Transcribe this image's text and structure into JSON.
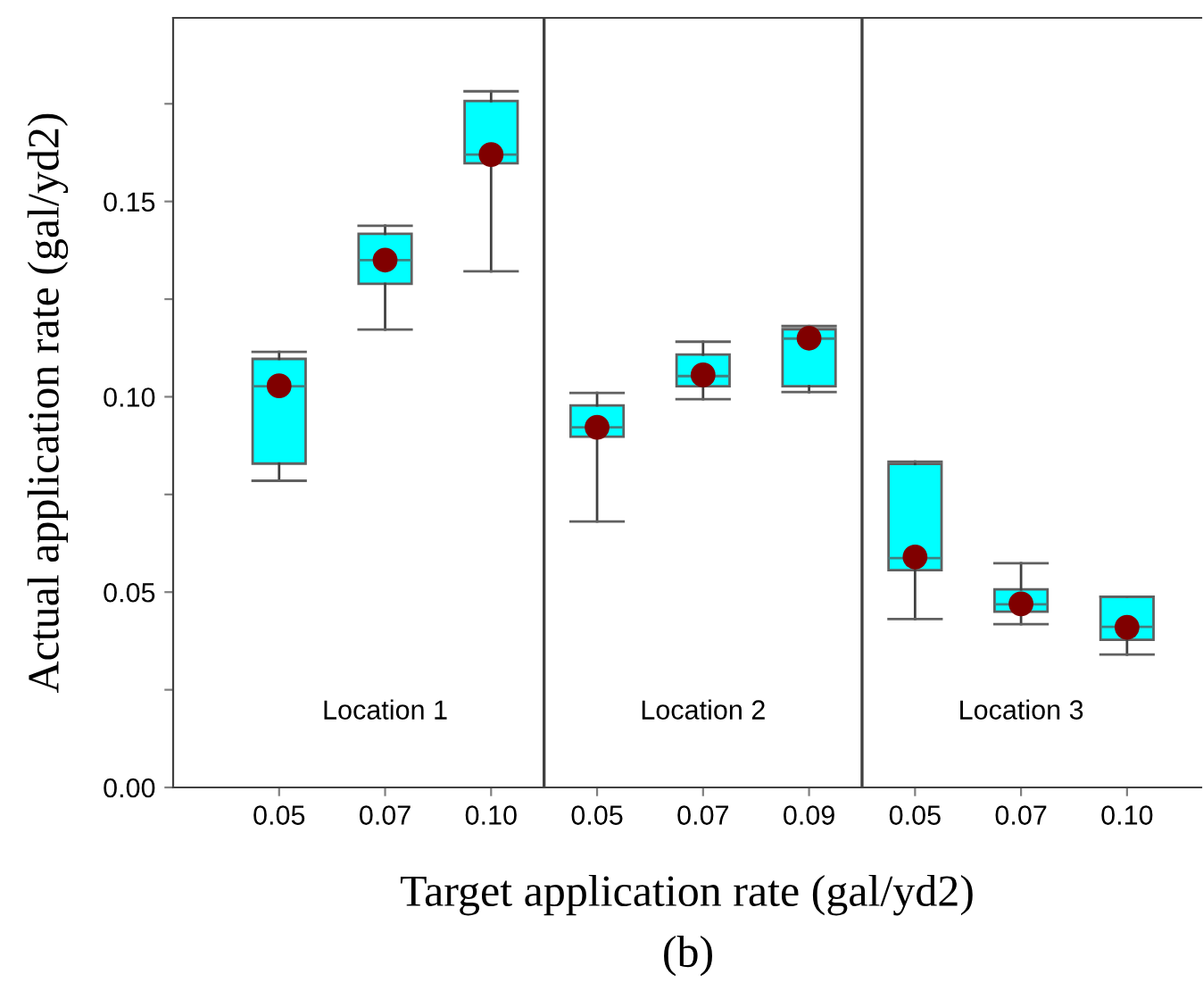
{
  "chart_data": {
    "type": "box",
    "xlabel": "Target application rate (gal/yd2)",
    "ylabel": "Actual application rate (gal/yd2)",
    "categories": [
      "0.05",
      "0.07",
      "0.10",
      "0.05",
      "0.07",
      "0.09",
      "0.05",
      "0.07",
      "0.10"
    ],
    "series": [
      {
        "color": "#00ffff",
        "boxes": [
          {
            "low": 0.0785,
            "q1": 0.0829,
            "median": 0.1027,
            "q3": 0.1097,
            "high": 0.1115,
            "mean": 0.1028
          },
          {
            "low": 0.1172,
            "q1": 0.1289,
            "median": 0.135,
            "q3": 0.1417,
            "high": 0.1438,
            "mean": 0.135
          },
          {
            "low": 0.1321,
            "q1": 0.1598,
            "median": 0.162,
            "q3": 0.1757,
            "high": 0.1782,
            "mean": 0.162
          },
          {
            "low": 0.0681,
            "q1": 0.0898,
            "median": 0.0922,
            "q3": 0.0978,
            "high": 0.101,
            "mean": 0.0922
          },
          {
            "low": 0.0994,
            "q1": 0.1027,
            "median": 0.1053,
            "q3": 0.1108,
            "high": 0.1141,
            "mean": 0.1056
          },
          {
            "low": 0.1012,
            "q1": 0.1027,
            "median": 0.1149,
            "q3": 0.1173,
            "high": 0.1181,
            "mean": 0.115
          },
          {
            "low": 0.0431,
            "q1": 0.0556,
            "median": 0.0587,
            "q3": 0.0828,
            "high": 0.0834,
            "mean": 0.059
          },
          {
            "low": 0.0418,
            "q1": 0.045,
            "median": 0.0469,
            "q3": 0.0507,
            "high": 0.0574,
            "mean": 0.047
          },
          {
            "low": 0.034,
            "q1": 0.0378,
            "median": 0.0411,
            "q3": 0.0488,
            "high": 0.0488,
            "mean": 0.041
          }
        ]
      }
    ],
    "ylim": [
      0,
      0.197
    ],
    "yticks": [
      {
        "value": 0,
        "label": "0.00"
      },
      {
        "value": 0.025,
        "label": null
      },
      {
        "value": 0.05,
        "label": "0.05"
      },
      {
        "value": 0.075,
        "label": null
      },
      {
        "value": 0.1,
        "label": "0.10"
      },
      {
        "value": 0.125,
        "label": null
      },
      {
        "value": 0.15,
        "label": "0.15"
      },
      {
        "value": 0.175,
        "label": null
      }
    ],
    "annotations": [
      "Location 1",
      "Location 2",
      "Location 3",
      "(b)"
    ],
    "grid": false,
    "legend": false
  }
}
